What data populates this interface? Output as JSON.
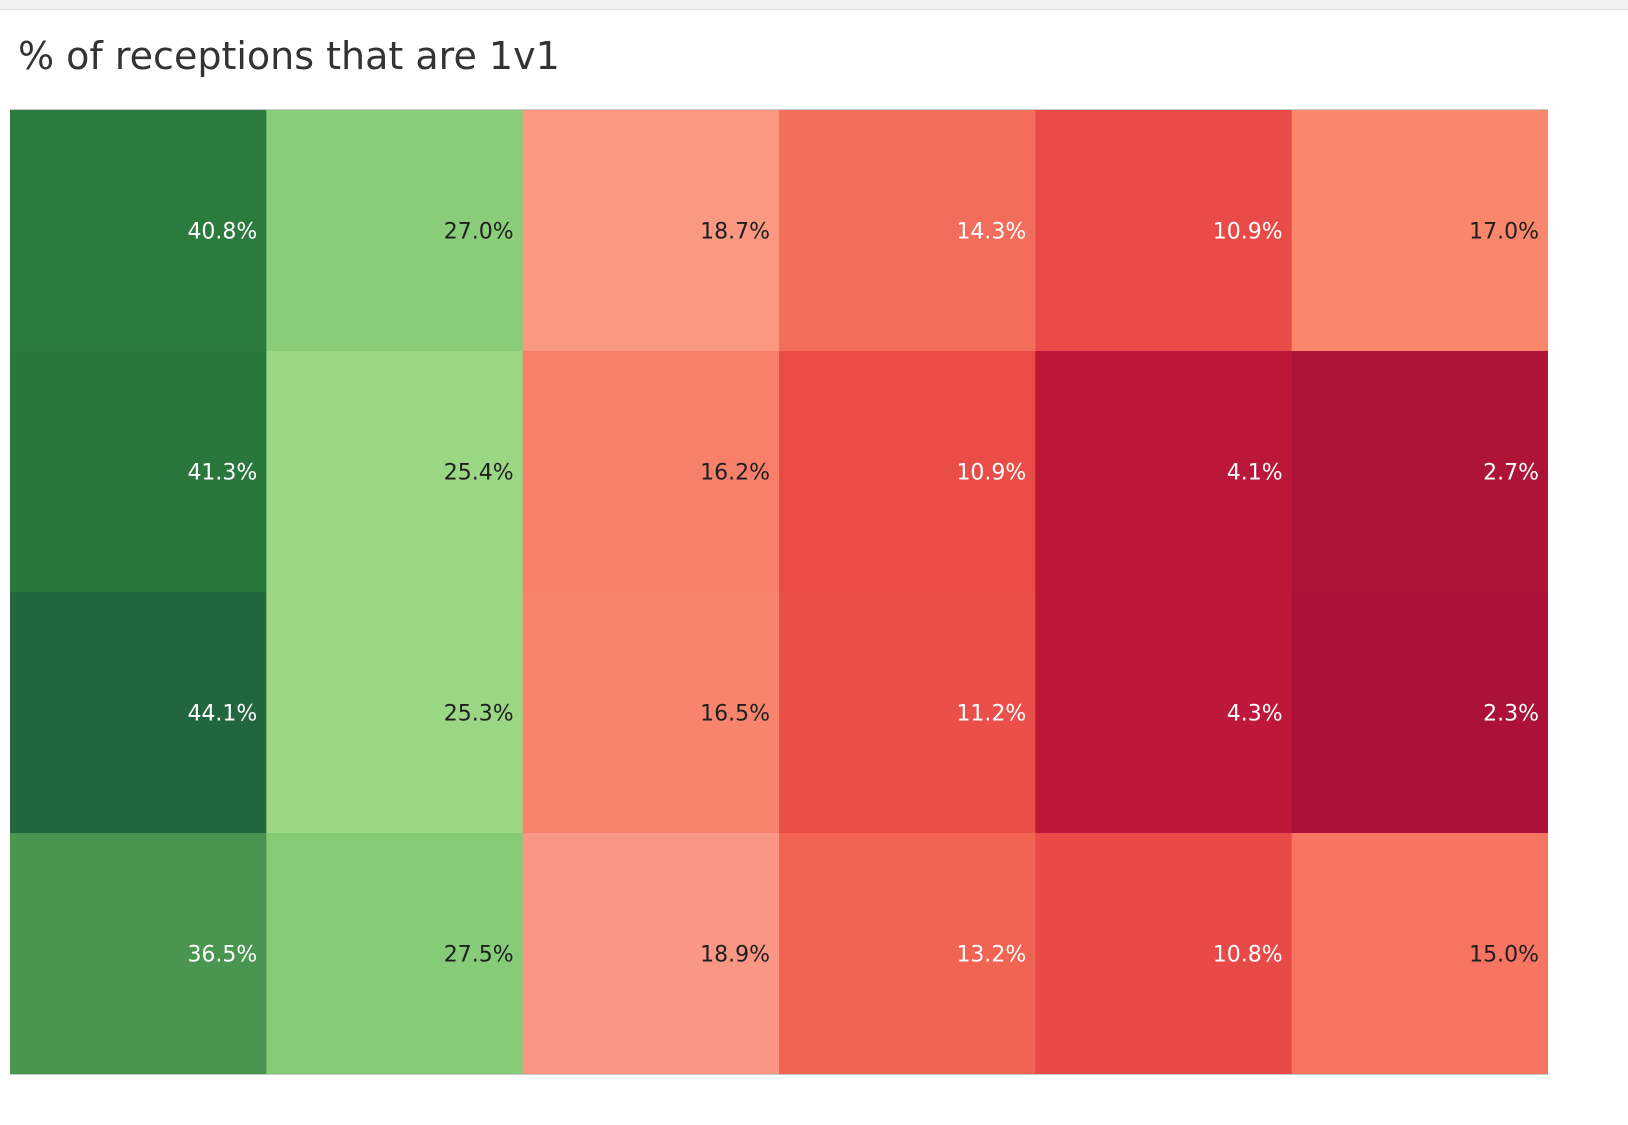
{
  "title": "% of receptions that are 1v1",
  "chart_data": {
    "type": "heatmap",
    "title": "% of receptions that are 1v1",
    "rows": 4,
    "columns": 6,
    "values": [
      [
        40.8,
        27.0,
        18.7,
        14.3,
        10.9,
        17.0
      ],
      [
        41.3,
        25.4,
        16.2,
        10.9,
        4.1,
        2.7
      ],
      [
        44.1,
        25.3,
        16.5,
        11.2,
        4.3,
        2.3
      ],
      [
        36.5,
        27.5,
        18.9,
        13.2,
        10.8,
        15.0
      ]
    ],
    "labels": [
      [
        "40.8%",
        "27.0%",
        "18.7%",
        "14.3%",
        "10.9%",
        "17.0%"
      ],
      [
        "41.3%",
        "25.4%",
        "16.2%",
        "10.9%",
        "4.1%",
        "2.7%"
      ],
      [
        "44.1%",
        "25.3%",
        "16.5%",
        "11.2%",
        "4.3%",
        "2.3%"
      ],
      [
        "36.5%",
        "27.5%",
        "18.9%",
        "13.2%",
        "10.8%",
        "15.0%"
      ]
    ],
    "colors": [
      [
        "#2b7a3e",
        "#89cd7b",
        "#fa9881",
        "#f26d5c",
        "#e84b48",
        "#fa876b"
      ],
      [
        "#2a773d",
        "#9ad684",
        "#f7806b",
        "#ea4d48",
        "#bb1839",
        "#ae1438"
      ],
      [
        "#226640",
        "#9bd684",
        "#f7846d",
        "#eb4f4a",
        "#bd173a",
        "#ac1238"
      ],
      [
        "#4a9550",
        "#86cb77",
        "#fa9784",
        "#f16353",
        "#e74a47",
        "#f77462"
      ]
    ],
    "label_colors": [
      [
        "#ffffff",
        "#1f1f1f",
        "#1f1f1f",
        "#ffffff",
        "#ffffff",
        "#1f1f1f"
      ],
      [
        "#ffffff",
        "#1f1f1f",
        "#1f1f1f",
        "#ffffff",
        "#ffffff",
        "#ffffff"
      ],
      [
        "#ffffff",
        "#1f1f1f",
        "#1f1f1f",
        "#ffffff",
        "#ffffff",
        "#ffffff"
      ],
      [
        "#ffffff",
        "#1f1f1f",
        "#1f1f1f",
        "#ffffff",
        "#ffffff",
        "#1f1f1f"
      ]
    ],
    "color_scale": {
      "low": "#a50f37",
      "mid": "#fba38c",
      "high": "#1e5f3c"
    }
  }
}
